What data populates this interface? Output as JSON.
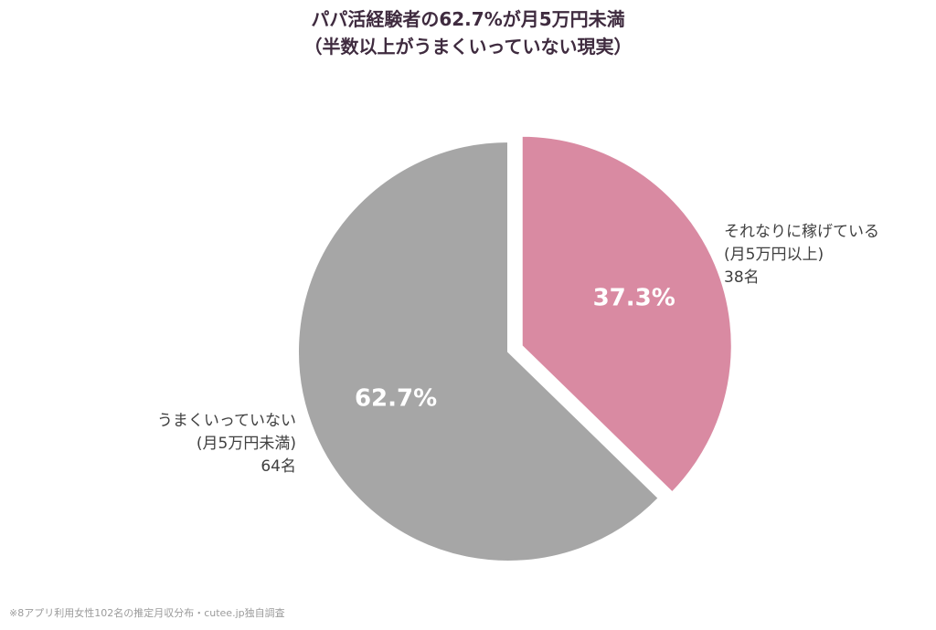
{
  "chart_data": {
    "type": "pie",
    "title": "パパ活経験者の62.7%が月5万円未満",
    "subtitle": "（半数以上がうまくいっていない現実）",
    "slices": [
      {
        "label_lines": [
          "それなりに稼げている",
          "(月5万円以上)",
          "38名"
        ],
        "count": 38,
        "percent": 37.3,
        "percent_label": "37.3%",
        "color": "#d98aa2",
        "exploded": true
      },
      {
        "label_lines": [
          "うまくいっていない",
          "(月5万円未満)",
          "64名"
        ],
        "count": 64,
        "percent": 62.7,
        "percent_label": "62.7%",
        "color": "#a6a6a6",
        "exploded": false
      }
    ],
    "start_angle": "12 o'clock",
    "direction": "clockwise"
  },
  "footnote": "※8アプリ利用女性102名の推定月収分布・cutee.jp独自調査",
  "colors": {
    "title": "#3f2b3f",
    "label_text": "#3f3f3f",
    "percent_text": "#ffffff",
    "footnote": "#9b9b9b"
  }
}
